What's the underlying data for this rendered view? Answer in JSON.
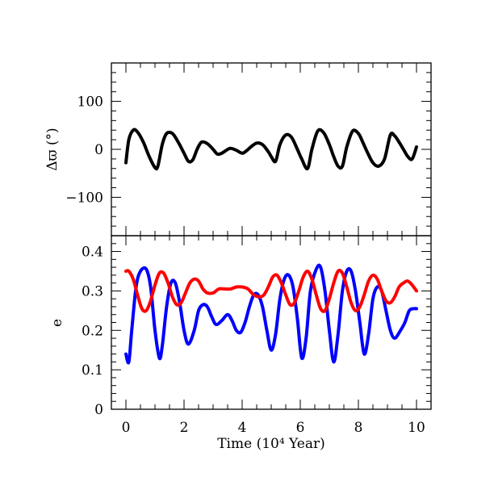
{
  "chart_data": [
    {
      "type": "line",
      "ylabel": "Δϖ (°)",
      "xlim": [
        -0.5,
        10.5
      ],
      "ylim": [
        -180,
        180
      ],
      "yticks": [
        -100,
        0,
        100
      ],
      "ytick_labels": [
        "−100",
        "0",
        "100"
      ],
      "series": [
        {
          "color": "#000000",
          "x": [
            0.0,
            0.1,
            0.25,
            0.4,
            0.6,
            0.8,
            1.0,
            1.1,
            1.25,
            1.4,
            1.6,
            1.8,
            2.0,
            2.15,
            2.3,
            2.45,
            2.6,
            2.8,
            3.0,
            3.15,
            3.3,
            3.45,
            3.6,
            3.8,
            4.0,
            4.15,
            4.3,
            4.5,
            4.7,
            4.9,
            5.0,
            5.15,
            5.3,
            5.5,
            5.7,
            5.9,
            6.05,
            6.25,
            6.4,
            6.6,
            6.8,
            7.0,
            7.15,
            7.3,
            7.45,
            7.6,
            7.8,
            8.0,
            8.15,
            8.3,
            8.5,
            8.7,
            8.9,
            9.1,
            9.25,
            9.4,
            9.55,
            9.7,
            9.85,
            10.0
          ],
          "values": [
            -28,
            20,
            40,
            36,
            15,
            -15,
            -38,
            -35,
            10,
            33,
            33,
            15,
            -8,
            -25,
            -22,
            0,
            15,
            12,
            0,
            -10,
            -8,
            -2,
            2,
            -2,
            -8,
            -3,
            5,
            13,
            10,
            -5,
            -15,
            -25,
            10,
            30,
            25,
            0,
            -20,
            -40,
            0,
            38,
            35,
            10,
            -15,
            -35,
            -35,
            5,
            38,
            33,
            15,
            -5,
            -28,
            -35,
            -20,
            30,
            28,
            15,
            0,
            -15,
            -20,
            5
          ]
        }
      ]
    },
    {
      "type": "line",
      "xlabel": "Time (10⁴ Year)",
      "ylabel": "e",
      "xlim": [
        -0.5,
        10.5
      ],
      "ylim": [
        0,
        0.44
      ],
      "xticks": [
        0,
        2,
        4,
        6,
        8,
        10
      ],
      "xtick_labels": [
        "0",
        "2",
        "4",
        "6",
        "8",
        "10"
      ],
      "yticks": [
        0,
        0.1,
        0.2,
        0.3,
        0.4
      ],
      "ytick_labels": [
        "0",
        "0.1",
        "0.2",
        "0.3",
        "0.4"
      ],
      "series": [
        {
          "color": "#0000ff",
          "x": [
            0.0,
            0.1,
            0.2,
            0.35,
            0.5,
            0.7,
            0.85,
            1.0,
            1.15,
            1.25,
            1.4,
            1.55,
            1.7,
            1.85,
            2.0,
            2.15,
            2.35,
            2.5,
            2.65,
            2.8,
            2.95,
            3.1,
            3.3,
            3.5,
            3.65,
            3.8,
            3.95,
            4.1,
            4.25,
            4.4,
            4.55,
            4.7,
            4.85,
            5.0,
            5.15,
            5.3,
            5.45,
            5.6,
            5.75,
            5.9,
            6.05,
            6.2,
            6.35,
            6.55,
            6.7,
            6.85,
            7.0,
            7.15,
            7.3,
            7.45,
            7.6,
            7.75,
            7.9,
            8.05,
            8.2,
            8.35,
            8.5,
            8.65,
            8.8,
            8.95,
            9.1,
            9.25,
            9.45,
            9.6,
            9.75,
            9.9,
            10.0
          ],
          "values": [
            0.14,
            0.12,
            0.2,
            0.31,
            0.35,
            0.355,
            0.31,
            0.2,
            0.13,
            0.16,
            0.26,
            0.32,
            0.32,
            0.27,
            0.2,
            0.165,
            0.2,
            0.25,
            0.265,
            0.26,
            0.235,
            0.215,
            0.225,
            0.24,
            0.225,
            0.2,
            0.195,
            0.22,
            0.26,
            0.29,
            0.29,
            0.26,
            0.2,
            0.15,
            0.19,
            0.28,
            0.33,
            0.34,
            0.31,
            0.23,
            0.13,
            0.18,
            0.3,
            0.355,
            0.36,
            0.3,
            0.2,
            0.12,
            0.19,
            0.3,
            0.35,
            0.35,
            0.3,
            0.22,
            0.14,
            0.19,
            0.28,
            0.31,
            0.3,
            0.25,
            0.2,
            0.18,
            0.2,
            0.22,
            0.25,
            0.255,
            0.255
          ]
        },
        {
          "color": "#ff0000",
          "x": [
            0.0,
            0.1,
            0.25,
            0.4,
            0.55,
            0.7,
            0.85,
            1.0,
            1.15,
            1.3,
            1.45,
            1.6,
            1.75,
            1.9,
            2.05,
            2.2,
            2.35,
            2.5,
            2.65,
            2.8,
            3.0,
            3.2,
            3.4,
            3.6,
            3.8,
            4.0,
            4.2,
            4.4,
            4.6,
            4.75,
            4.9,
            5.05,
            5.2,
            5.35,
            5.5,
            5.65,
            5.8,
            5.95,
            6.1,
            6.25,
            6.4,
            6.55,
            6.7,
            6.85,
            7.0,
            7.15,
            7.3,
            7.45,
            7.6,
            7.75,
            7.9,
            8.05,
            8.2,
            8.35,
            8.5,
            8.65,
            8.8,
            8.95,
            9.1,
            9.25,
            9.4,
            9.55,
            9.7,
            9.85,
            10.0
          ],
          "values": [
            0.35,
            0.35,
            0.33,
            0.29,
            0.255,
            0.25,
            0.275,
            0.315,
            0.345,
            0.345,
            0.32,
            0.285,
            0.265,
            0.27,
            0.295,
            0.32,
            0.33,
            0.325,
            0.305,
            0.295,
            0.295,
            0.305,
            0.305,
            0.305,
            0.31,
            0.31,
            0.305,
            0.29,
            0.285,
            0.29,
            0.31,
            0.335,
            0.34,
            0.32,
            0.29,
            0.265,
            0.27,
            0.3,
            0.335,
            0.35,
            0.33,
            0.29,
            0.255,
            0.25,
            0.28,
            0.32,
            0.35,
            0.345,
            0.31,
            0.27,
            0.25,
            0.26,
            0.29,
            0.325,
            0.34,
            0.33,
            0.3,
            0.275,
            0.27,
            0.285,
            0.31,
            0.32,
            0.325,
            0.315,
            0.3
          ]
        }
      ]
    }
  ]
}
